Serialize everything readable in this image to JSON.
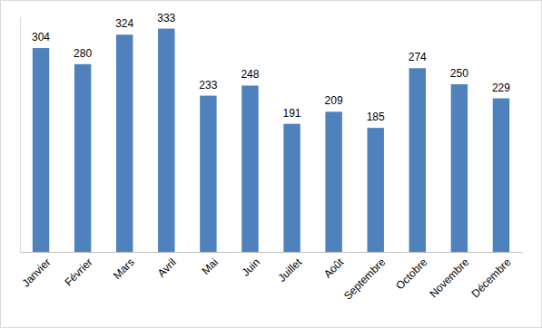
{
  "chart_data": {
    "type": "bar",
    "categories": [
      "Janvier",
      "Février",
      "Mars",
      "Avril",
      "Mai",
      "Juin",
      "Juillet",
      "Août",
      "Septembre",
      "Octobre",
      "Novembre",
      "Décembre"
    ],
    "values": [
      304,
      280,
      324,
      333,
      233,
      248,
      191,
      209,
      185,
      274,
      250,
      229
    ],
    "color": "#4f81bd",
    "ylim": [
      0,
      350
    ],
    "grid": false,
    "data_labels": true,
    "tick_labels": "x"
  }
}
